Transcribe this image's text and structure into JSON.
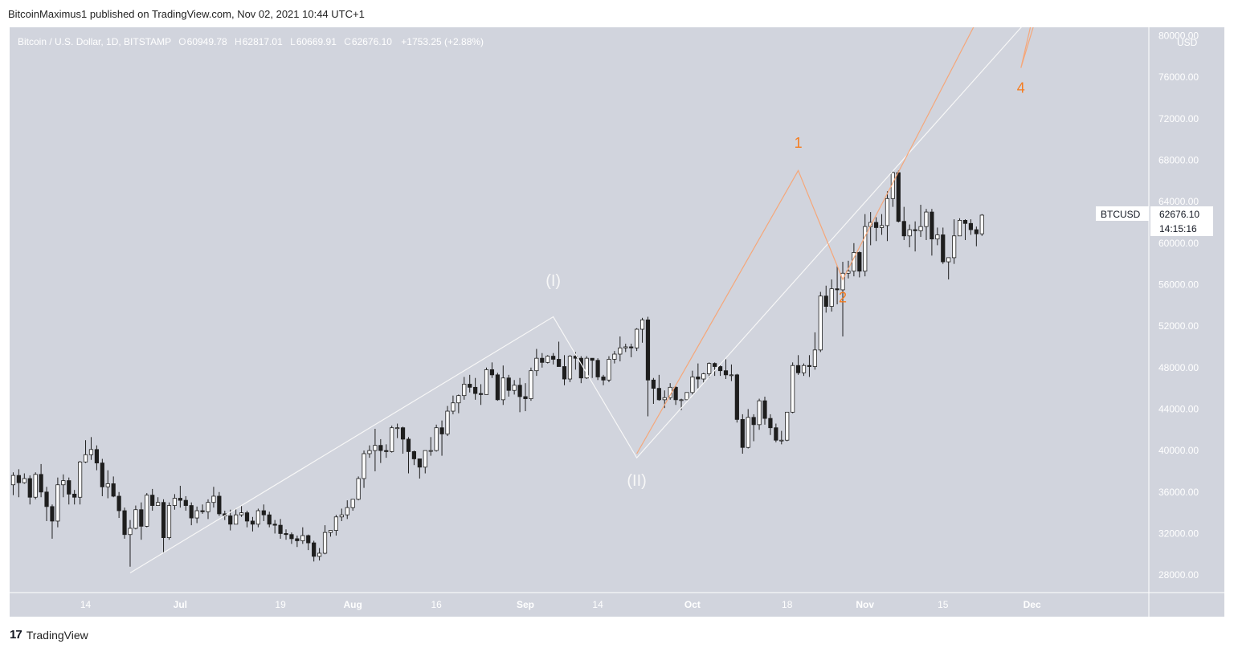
{
  "header": {
    "text": "BitcoinMaximus1 published on TradingView.com, Nov 02, 2021 10:44 UTC+1"
  },
  "symbol": {
    "title": "Bitcoin / U.S. Dollar, 1D, BITSTAMP",
    "open_label": "O",
    "open": "60949.78",
    "high_label": "H",
    "high": "62817.01",
    "low_label": "L",
    "low": "60669.91",
    "close_label": "C",
    "close": "62676.10",
    "change": "+1753.25 (+2.88%)"
  },
  "price_tag": {
    "ticker": "BTCUSD",
    "price": "62676.10",
    "countdown": "14:15:16"
  },
  "footer": {
    "brand": "TradingView",
    "logo_text": "17"
  },
  "colors": {
    "background": "#d1d4dd",
    "axis_text": "#ffffff",
    "candle_up_fill": "#ffffff",
    "candle_down_fill": "#1e1e1e",
    "wick": "#1e1e1e",
    "wave_primary": "#f7f7f7",
    "wave_minor": "#f5a77a",
    "label_orange": "#f57c1f"
  },
  "chart_data": {
    "type": "candlestick",
    "title": "Bitcoin / U.S. Dollar, 1D, BITSTAMP",
    "currency_label": "USD",
    "y_ticks": [
      "28000.00",
      "32000.00",
      "36000.00",
      "40000.00",
      "44000.00",
      "48000.00",
      "52000.00",
      "56000.00",
      "60000.00",
      "64000.00",
      "68000.00",
      "72000.00",
      "76000.00",
      "80000.00"
    ],
    "x_ticks": [
      {
        "label": "14",
        "date": "2021-06-14",
        "bold": false
      },
      {
        "label": "Jul",
        "date": "2021-07-01",
        "bold": true
      },
      {
        "label": "19",
        "date": "2021-07-19",
        "bold": false
      },
      {
        "label": "Aug",
        "date": "2021-08-01",
        "bold": true
      },
      {
        "label": "16",
        "date": "2021-08-16",
        "bold": false
      },
      {
        "label": "Sep",
        "date": "2021-09-01",
        "bold": true
      },
      {
        "label": "14",
        "date": "2021-09-14",
        "bold": false
      },
      {
        "label": "Oct",
        "date": "2021-10-01",
        "bold": true
      },
      {
        "label": "18",
        "date": "2021-10-18",
        "bold": false
      },
      {
        "label": "Nov",
        "date": "2021-11-01",
        "bold": true
      },
      {
        "label": "15",
        "date": "2021-11-15",
        "bold": false
      },
      {
        "label": "Dec",
        "date": "2021-12-01",
        "bold": true
      }
    ],
    "candles": {
      "start_date": "2021-06-01",
      "ohlc": [
        [
          36700,
          37900,
          35700,
          37600
        ],
        [
          37600,
          38200,
          35500,
          36900
        ],
        [
          36900,
          37800,
          36800,
          37300
        ],
        [
          37300,
          37600,
          34800,
          35500
        ],
        [
          35500,
          37900,
          35300,
          37700
        ],
        [
          37700,
          38700,
          35500,
          36000
        ],
        [
          36000,
          36500,
          33200,
          34600
        ],
        [
          34600,
          34800,
          31500,
          33200
        ],
        [
          33200,
          37400,
          32600,
          36700
        ],
        [
          36700,
          37700,
          35500,
          37100
        ],
        [
          37100,
          37400,
          34800,
          35800
        ],
        [
          35800,
          36200,
          34800,
          35500
        ],
        [
          35500,
          39000,
          34800,
          38900
        ],
        [
          38900,
          41000,
          38800,
          39600
        ],
        [
          39600,
          41300,
          39100,
          40100
        ],
        [
          40100,
          40500,
          38100,
          38800
        ],
        [
          38800,
          39200,
          35600,
          36500
        ],
        [
          36500,
          38100,
          35400,
          36800
        ],
        [
          36800,
          37500,
          35500,
          35600
        ],
        [
          35600,
          36000,
          33500,
          34200
        ],
        [
          34200,
          34500,
          31500,
          31900
        ],
        [
          31900,
          33300,
          28800,
          32500
        ],
        [
          32500,
          34700,
          32400,
          34300
        ],
        [
          34300,
          35000,
          31400,
          32700
        ],
        [
          32700,
          35900,
          32600,
          35700
        ],
        [
          35700,
          36300,
          34200,
          34700
        ],
        [
          34700,
          35500,
          34700,
          35000
        ],
        [
          35000,
          35300,
          30100,
          31600
        ],
        [
          31600,
          35000,
          31400,
          34700
        ],
        [
          34700,
          35800,
          34300,
          35400
        ],
        [
          35400,
          36600,
          34500,
          35200
        ],
        [
          35200,
          35600,
          34200,
          34700
        ],
        [
          34700,
          35000,
          32800,
          33500
        ],
        [
          33500,
          34600,
          33000,
          34200
        ],
        [
          34200,
          34800,
          33900,
          34100
        ],
        [
          34100,
          35300,
          33400,
          35000
        ],
        [
          35000,
          36500,
          34500,
          35600
        ],
        [
          35600,
          36000,
          33700,
          33900
        ],
        [
          33900,
          34200,
          33300,
          33700
        ],
        [
          33700,
          34300,
          32300,
          32900
        ],
        [
          32900,
          34400,
          32900,
          33800
        ],
        [
          33800,
          34700,
          33600,
          34000
        ],
        [
          34000,
          34200,
          32600,
          33200
        ],
        [
          33200,
          33600,
          32200,
          32900
        ],
        [
          32900,
          34400,
          32600,
          34200
        ],
        [
          34200,
          34800,
          33200,
          33800
        ],
        [
          33800,
          34100,
          32600,
          32900
        ],
        [
          32900,
          33300,
          32000,
          32800
        ],
        [
          32800,
          33400,
          31500,
          32000
        ],
        [
          32000,
          32400,
          31400,
          31900
        ],
        [
          31900,
          32100,
          31000,
          31500
        ],
        [
          31500,
          31800,
          30700,
          31300
        ],
        [
          31300,
          32600,
          31000,
          31800
        ],
        [
          31800,
          31900,
          30400,
          31100
        ],
        [
          31100,
          31300,
          29300,
          29800
        ],
        [
          29800,
          30600,
          29400,
          30100
        ],
        [
          30100,
          32800,
          30000,
          32100
        ],
        [
          32100,
          32300,
          31700,
          32300
        ],
        [
          32300,
          33800,
          31800,
          33600
        ],
        [
          33600,
          34400,
          33200,
          33800
        ],
        [
          33800,
          35200,
          33400,
          34500
        ],
        [
          34500,
          35300,
          34200,
          35300
        ],
        [
          35300,
          37500,
          35200,
          37300
        ],
        [
          37300,
          40000,
          36400,
          39700
        ],
        [
          39700,
          40500,
          39300,
          40000
        ],
        [
          40000,
          42100,
          38000,
          40500
        ],
        [
          40500,
          41100,
          38800,
          40000
        ],
        [
          40000,
          40600,
          39300,
          39900
        ],
        [
          39900,
          42400,
          39800,
          42200
        ],
        [
          42200,
          42600,
          41200,
          42200
        ],
        [
          42200,
          42300,
          39700,
          41100
        ],
        [
          41100,
          41300,
          37800,
          39900
        ],
        [
          39900,
          40000,
          38600,
          39200
        ],
        [
          39200,
          39200,
          37300,
          38400
        ],
        [
          38400,
          40000,
          37800,
          40000
        ],
        [
          40000,
          41300,
          39500,
          40000
        ],
        [
          40000,
          42500,
          39900,
          42200
        ],
        [
          42200,
          42900,
          39500,
          41600
        ],
        [
          41600,
          44300,
          41400,
          43800
        ],
        [
          43800,
          45300,
          43500,
          44600
        ],
        [
          44600,
          45400,
          43600,
          45300
        ],
        [
          45300,
          47100,
          44900,
          46400
        ],
        [
          46400,
          47300,
          45600,
          46100
        ],
        [
          46100,
          47000,
          44900,
          45500
        ],
        [
          45500,
          46400,
          44400,
          45400
        ],
        [
          45400,
          48000,
          45400,
          47800
        ],
        [
          47800,
          48500,
          47000,
          47300
        ],
        [
          47300,
          47500,
          44800,
          44900
        ],
        [
          44900,
          48200,
          44400,
          47000
        ],
        [
          47000,
          47300,
          45200,
          45800
        ],
        [
          45800,
          46800,
          45400,
          46300
        ],
        [
          46300,
          47000,
          43700,
          45200
        ],
        [
          45200,
          46500,
          43800,
          45000
        ],
        [
          45000,
          48000,
          44800,
          47700
        ],
        [
          47700,
          49800,
          47200,
          48900
        ],
        [
          48900,
          49400,
          48000,
          48500
        ],
        [
          48500,
          49200,
          48400,
          49100
        ],
        [
          49100,
          49400,
          48300,
          48800
        ],
        [
          48800,
          50500,
          48300,
          48100
        ],
        [
          48100,
          49200,
          46300,
          46900
        ],
        [
          46900,
          49200,
          46600,
          49100
        ],
        [
          49100,
          49500,
          47800,
          48900
        ],
        [
          48900,
          49100,
          46500,
          47000
        ],
        [
          47000,
          49100,
          46900,
          48900
        ],
        [
          48900,
          48800,
          47000,
          48700
        ],
        [
          48700,
          48900,
          46800,
          47100
        ],
        [
          47100,
          47300,
          46300,
          46800
        ],
        [
          46800,
          49100,
          46600,
          48800
        ],
        [
          48800,
          49600,
          48400,
          49300
        ],
        [
          49300,
          51000,
          48600,
          49900
        ],
        [
          49900,
          50300,
          49500,
          50000
        ],
        [
          50000,
          50300,
          49000,
          49900
        ],
        [
          49900,
          51800,
          49600,
          51700
        ],
        [
          51700,
          52800,
          50400,
          52600
        ],
        [
          52600,
          52900,
          43300,
          46800
        ],
        [
          46800,
          47000,
          44500,
          46000
        ],
        [
          46000,
          47300,
          44800,
          44900
        ],
        [
          44900,
          45800,
          44100,
          45100
        ],
        [
          45100,
          46500,
          44900,
          46100
        ],
        [
          46100,
          46200,
          44400,
          44900
        ],
        [
          44900,
          45000,
          43900,
          44900
        ],
        [
          44900,
          45600,
          44900,
          45600
        ],
        [
          45600,
          47700,
          45400,
          47100
        ],
        [
          47100,
          48400,
          46000,
          46900
        ],
        [
          46900,
          47500,
          46500,
          47400
        ],
        [
          47400,
          48500,
          47000,
          48400
        ],
        [
          48400,
          48500,
          47200,
          48100
        ],
        [
          48100,
          48200,
          47200,
          47700
        ],
        [
          47700,
          48800,
          46900,
          47300
        ],
        [
          47300,
          48300,
          46700,
          47300
        ],
        [
          47300,
          47400,
          42700,
          43000
        ],
        [
          43000,
          43500,
          39700,
          40300
        ],
        [
          40300,
          44000,
          40200,
          43200
        ],
        [
          43200,
          43500,
          40900,
          42500
        ],
        [
          42500,
          45000,
          42000,
          44800
        ],
        [
          44800,
          45200,
          42500,
          43100
        ],
        [
          43100,
          43500,
          41500,
          42200
        ],
        [
          42200,
          42600,
          40800,
          41000
        ],
        [
          41000,
          41900,
          40600,
          41000
        ],
        [
          41000,
          43700,
          40900,
          43700
        ],
        [
          43700,
          48500,
          43600,
          48200
        ],
        [
          48200,
          49200,
          47300,
          47500
        ],
        [
          47500,
          48400,
          47200,
          48200
        ],
        [
          48200,
          49200,
          47100,
          48100
        ],
        [
          48100,
          51400,
          47800,
          49700
        ],
        [
          49700,
          55300,
          49500,
          54900
        ],
        [
          54900,
          55900,
          53300,
          53900
        ],
        [
          53900,
          56500,
          53400,
          55600
        ],
        [
          55600,
          57800,
          54100,
          55500
        ],
        [
          55500,
          58200,
          51000,
          57100
        ],
        [
          57100,
          58300,
          56600,
          57300
        ],
        [
          57300,
          60000,
          56800,
          59100
        ],
        [
          59100,
          59200,
          56700,
          57300
        ],
        [
          57300,
          62800,
          56800,
          61600
        ],
        [
          61600,
          63000,
          59800,
          62000
        ],
        [
          62000,
          62500,
          60200,
          61500
        ],
        [
          61500,
          62800,
          60800,
          61700
        ],
        [
          61700,
          65000,
          60200,
          64300
        ],
        [
          64300,
          67000,
          63500,
          66800
        ],
        [
          66800,
          67000,
          62000,
          62100
        ],
        [
          62100,
          63500,
          60300,
          60700
        ],
        [
          60700,
          61800,
          59600,
          61300
        ],
        [
          61300,
          62100,
          59200,
          61200
        ],
        [
          61200,
          63700,
          60600,
          61600
        ],
        [
          61600,
          63300,
          60300,
          63000
        ],
        [
          63000,
          63300,
          58800,
          60400
        ],
        [
          60400,
          61500,
          59800,
          60800
        ],
        [
          60800,
          61500,
          58000,
          58200
        ],
        [
          58200,
          58500,
          56500,
          58600
        ],
        [
          58600,
          62300,
          58000,
          60700
        ],
        [
          60700,
          62400,
          60700,
          62200
        ],
        [
          62200,
          62300,
          60300,
          61900
        ],
        [
          61900,
          62300,
          60800,
          61300
        ],
        [
          61300,
          61600,
          59700,
          60900
        ],
        [
          60900,
          62800,
          60700,
          62700
        ]
      ]
    },
    "wave_primary": {
      "color": "#f7f7f7",
      "points": [
        [
          "2021-06-22",
          28200
        ],
        [
          "2021-09-06",
          52900
        ],
        [
          "2021-09-21",
          39300
        ],
        [
          "2021-12-11",
          88000
        ]
      ],
      "labels": [
        {
          "text": "(I)",
          "date": "2021-09-06",
          "price": 55900
        },
        {
          "text": "(II)",
          "date": "2021-09-21",
          "price": 36600
        }
      ]
    },
    "wave_minor": {
      "color": "#f5a77a",
      "points": [
        [
          "2021-09-21",
          39700
        ],
        [
          "2021-10-20",
          67000
        ],
        [
          "2021-10-28",
          56500
        ],
        [
          "2021-12-09",
          100000
        ],
        [
          "2021-11-29",
          76900
        ],
        [
          "2021-12-12",
          100000
        ]
      ],
      "labels": [
        {
          "text": "1",
          "date": "2021-10-20",
          "price": 69200
        },
        {
          "text": "2",
          "date": "2021-10-28",
          "price": 54300
        },
        {
          "text": "4",
          "date": "2021-11-29",
          "price": 74500
        }
      ]
    }
  }
}
